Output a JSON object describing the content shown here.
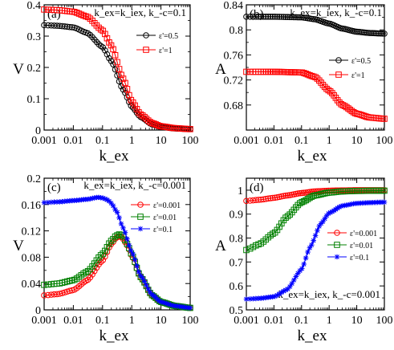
{
  "chart_data": [
    {
      "type": "line",
      "panel_label": "(a)",
      "annotation": "k_ex=k_iex,  k_-c=0.1",
      "xlabel": "k_ex",
      "ylabel": "V",
      "x_scale": "log",
      "xlim": [
        0.001,
        100
      ],
      "ylim": [
        0,
        0.4
      ],
      "x_ticks": [
        "0.001",
        "0.01",
        "0.1",
        "1",
        "10",
        "100"
      ],
      "y_ticks": [
        "0",
        "0.1",
        "0.2",
        "0.3",
        "0.4"
      ],
      "legend_position": "top-right",
      "series": [
        {
          "name": "ε'=0.5",
          "color": "#000000",
          "marker": "circle",
          "x": [
            0.001,
            0.003,
            0.01,
            0.03,
            0.1,
            0.2,
            0.5,
            1,
            2,
            5,
            10,
            30,
            100
          ],
          "y": [
            0.335,
            0.333,
            0.328,
            0.31,
            0.265,
            0.22,
            0.13,
            0.075,
            0.042,
            0.018,
            0.01,
            0.005,
            0.003
          ]
        },
        {
          "name": "ε'=1",
          "color": "#ff0000",
          "marker": "square",
          "x": [
            0.001,
            0.003,
            0.01,
            0.03,
            0.1,
            0.2,
            0.5,
            1,
            2,
            5,
            10,
            30,
            100
          ],
          "y": [
            0.385,
            0.383,
            0.378,
            0.362,
            0.318,
            0.27,
            0.165,
            0.092,
            0.05,
            0.022,
            0.012,
            0.006,
            0.003
          ]
        }
      ]
    },
    {
      "type": "line",
      "panel_label": "(b)",
      "annotation": "k_ex=k_iex,  k_-c=0.1",
      "xlabel": "k_ex",
      "ylabel": "A",
      "x_scale": "log",
      "xlim": [
        0.001,
        100
      ],
      "ylim": [
        0.64,
        0.84
      ],
      "x_ticks": [
        "0.001",
        "0.01",
        "0.1",
        "1",
        "10",
        "100"
      ],
      "y_ticks": [
        "0.68",
        "0.72",
        "0.76",
        "0.8",
        "0.84"
      ],
      "legend_position": "right",
      "series": [
        {
          "name": "ε'=0.5",
          "color": "#000000",
          "marker": "circle",
          "x": [
            0.001,
            0.01,
            0.1,
            0.3,
            1,
            3,
            10,
            30,
            100
          ],
          "y": [
            0.821,
            0.821,
            0.82,
            0.817,
            0.81,
            0.802,
            0.797,
            0.795,
            0.794
          ]
        },
        {
          "name": "ε'=1",
          "color": "#ff0000",
          "marker": "square",
          "x": [
            0.001,
            0.01,
            0.1,
            0.3,
            1,
            3,
            10,
            30,
            100
          ],
          "y": [
            0.733,
            0.733,
            0.732,
            0.725,
            0.703,
            0.68,
            0.666,
            0.66,
            0.658
          ]
        }
      ]
    },
    {
      "type": "line",
      "panel_label": "(c)",
      "annotation": "k_ex=k_iex,  k_-c=0.001",
      "xlabel": "k_ex",
      "ylabel": "V",
      "x_scale": "log",
      "xlim": [
        0.001,
        100
      ],
      "ylim": [
        0,
        0.2
      ],
      "x_ticks": [
        "0.001",
        "0.01",
        "0.1",
        "1",
        "10",
        "100"
      ],
      "y_ticks": [
        "0",
        "0.04",
        "0.08",
        "0.12",
        "0.16",
        "0.2"
      ],
      "legend_position": "right",
      "series": [
        {
          "name": "ε'=0.001",
          "color": "#ff0000",
          "marker": "circle",
          "x": [
            0.001,
            0.003,
            0.01,
            0.03,
            0.1,
            0.2,
            0.3,
            0.4,
            0.5,
            0.7,
            1,
            2,
            5,
            10,
            30,
            100
          ],
          "y": [
            0.022,
            0.024,
            0.03,
            0.045,
            0.075,
            0.1,
            0.11,
            0.112,
            0.108,
            0.098,
            0.082,
            0.05,
            0.022,
            0.012,
            0.006,
            0.003
          ]
        },
        {
          "name": "ε'=0.01",
          "color": "#008000",
          "marker": "square",
          "x": [
            0.001,
            0.003,
            0.01,
            0.03,
            0.1,
            0.2,
            0.3,
            0.4,
            0.5,
            0.7,
            1,
            2,
            5,
            10,
            30,
            100
          ],
          "y": [
            0.038,
            0.04,
            0.045,
            0.058,
            0.085,
            0.105,
            0.113,
            0.115,
            0.112,
            0.1,
            0.084,
            0.05,
            0.022,
            0.012,
            0.006,
            0.003
          ]
        },
        {
          "name": "ε'=0.1",
          "color": "#0000ff",
          "marker": "star",
          "x": [
            0.001,
            0.003,
            0.01,
            0.03,
            0.07,
            0.1,
            0.15,
            0.2,
            0.3,
            0.5,
            1,
            2,
            5,
            10,
            30,
            100
          ],
          "y": [
            0.163,
            0.164,
            0.166,
            0.168,
            0.171,
            0.17,
            0.167,
            0.162,
            0.15,
            0.125,
            0.088,
            0.052,
            0.023,
            0.012,
            0.006,
            0.003
          ]
        }
      ]
    },
    {
      "type": "line",
      "panel_label": "(d)",
      "annotation": "k_ex=k_iex,  k_-c=0.001",
      "xlabel": "k_ex",
      "ylabel": "A",
      "x_scale": "log",
      "xlim": [
        0.001,
        100
      ],
      "ylim": [
        0.5,
        1.05
      ],
      "x_ticks": [
        "0.001",
        "0.01",
        "0.1",
        "1",
        "10",
        "100"
      ],
      "y_ticks": [
        "0.5",
        "0.6",
        "0.7",
        "0.8",
        "0.9",
        "1"
      ],
      "legend_position": "right",
      "series": [
        {
          "name": "ε'=0.001",
          "color": "#ff0000",
          "marker": "circle",
          "x": [
            0.001,
            0.003,
            0.01,
            0.03,
            0.1,
            0.3,
            1,
            3,
            10,
            100
          ],
          "y": [
            0.955,
            0.96,
            0.968,
            0.978,
            0.988,
            0.995,
            0.998,
            0.999,
            1.0,
            1.0
          ]
        },
        {
          "name": "ε'=0.01",
          "color": "#008000",
          "marker": "square",
          "x": [
            0.001,
            0.003,
            0.01,
            0.03,
            0.1,
            0.3,
            1,
            3,
            10,
            100
          ],
          "y": [
            0.75,
            0.775,
            0.82,
            0.89,
            0.95,
            0.978,
            0.99,
            0.995,
            0.997,
            0.998
          ]
        },
        {
          "name": "ε'=0.1",
          "color": "#0000ff",
          "marker": "star",
          "x": [
            0.001,
            0.003,
            0.01,
            0.03,
            0.1,
            0.2,
            0.5,
            1,
            3,
            10,
            30,
            100
          ],
          "y": [
            0.545,
            0.548,
            0.555,
            0.585,
            0.67,
            0.76,
            0.86,
            0.905,
            0.935,
            0.945,
            0.948,
            0.95
          ]
        }
      ]
    }
  ]
}
